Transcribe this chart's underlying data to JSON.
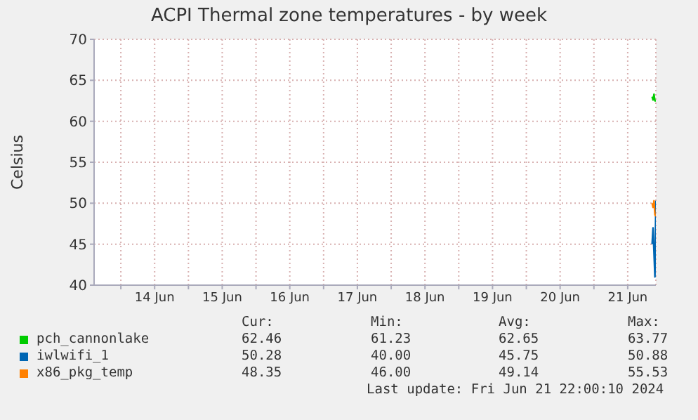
{
  "chart_data": {
    "type": "line",
    "title": "ACPI Thermal zone temperatures - by week",
    "ylabel": "Celsius",
    "x": [
      "2024-06-21T20:40",
      "2024-06-21T21:00",
      "2024-06-21T21:20",
      "2024-06-21T21:40",
      "2024-06-21T22:00"
    ],
    "series": [
      {
        "name": "pch_cannonlake",
        "color": "#00cc00",
        "values": [
          63.0,
          62.6,
          63.3,
          62.5,
          62.5
        ]
      },
      {
        "name": "iwlwifi_1",
        "color": "#0066b3",
        "values": [
          45,
          47,
          44,
          41,
          50.3
        ]
      },
      {
        "name": "x86_pkg_temp",
        "color": "#ff8000",
        "values": [
          50,
          49.5,
          50.3,
          48.6,
          48.4
        ]
      }
    ],
    "xlim": [
      "2024-06-13T14:30",
      "2024-06-21T22:00"
    ],
    "xticks": [
      {
        "value": "2024-06-14T00:00",
        "label": null
      },
      {
        "value": "2024-06-14T12:00",
        "label": "14 Jun"
      },
      {
        "value": "2024-06-15T00:00",
        "label": null
      },
      {
        "value": "2024-06-15T12:00",
        "label": "15 Jun"
      },
      {
        "value": "2024-06-16T00:00",
        "label": null
      },
      {
        "value": "2024-06-16T12:00",
        "label": "16 Jun"
      },
      {
        "value": "2024-06-17T00:00",
        "label": null
      },
      {
        "value": "2024-06-17T12:00",
        "label": "17 Jun"
      },
      {
        "value": "2024-06-18T00:00",
        "label": null
      },
      {
        "value": "2024-06-18T12:00",
        "label": "18 Jun"
      },
      {
        "value": "2024-06-19T00:00",
        "label": null
      },
      {
        "value": "2024-06-19T12:00",
        "label": "19 Jun"
      },
      {
        "value": "2024-06-20T00:00",
        "label": null
      },
      {
        "value": "2024-06-20T12:00",
        "label": "20 Jun"
      },
      {
        "value": "2024-06-21T00:00",
        "label": null
      },
      {
        "value": "2024-06-21T12:00",
        "label": "21 Jun"
      }
    ],
    "ylim": [
      40,
      70
    ],
    "yticks": [
      40,
      45,
      50,
      55,
      60,
      65,
      70
    ],
    "grid": true,
    "legend": "bottom",
    "marker": "none",
    "line_style": "solid",
    "annotations": [
      "Cur:",
      "Min:",
      "Avg:",
      "Max:",
      "62.46",
      "61.23",
      "62.65",
      "63.77",
      "50.28",
      "40.00",
      "45.75",
      "50.88",
      "48.35",
      "46.00",
      "49.14",
      "55.53",
      "Last update: Fri Jun 21 22:00:10 2024"
    ]
  }
}
